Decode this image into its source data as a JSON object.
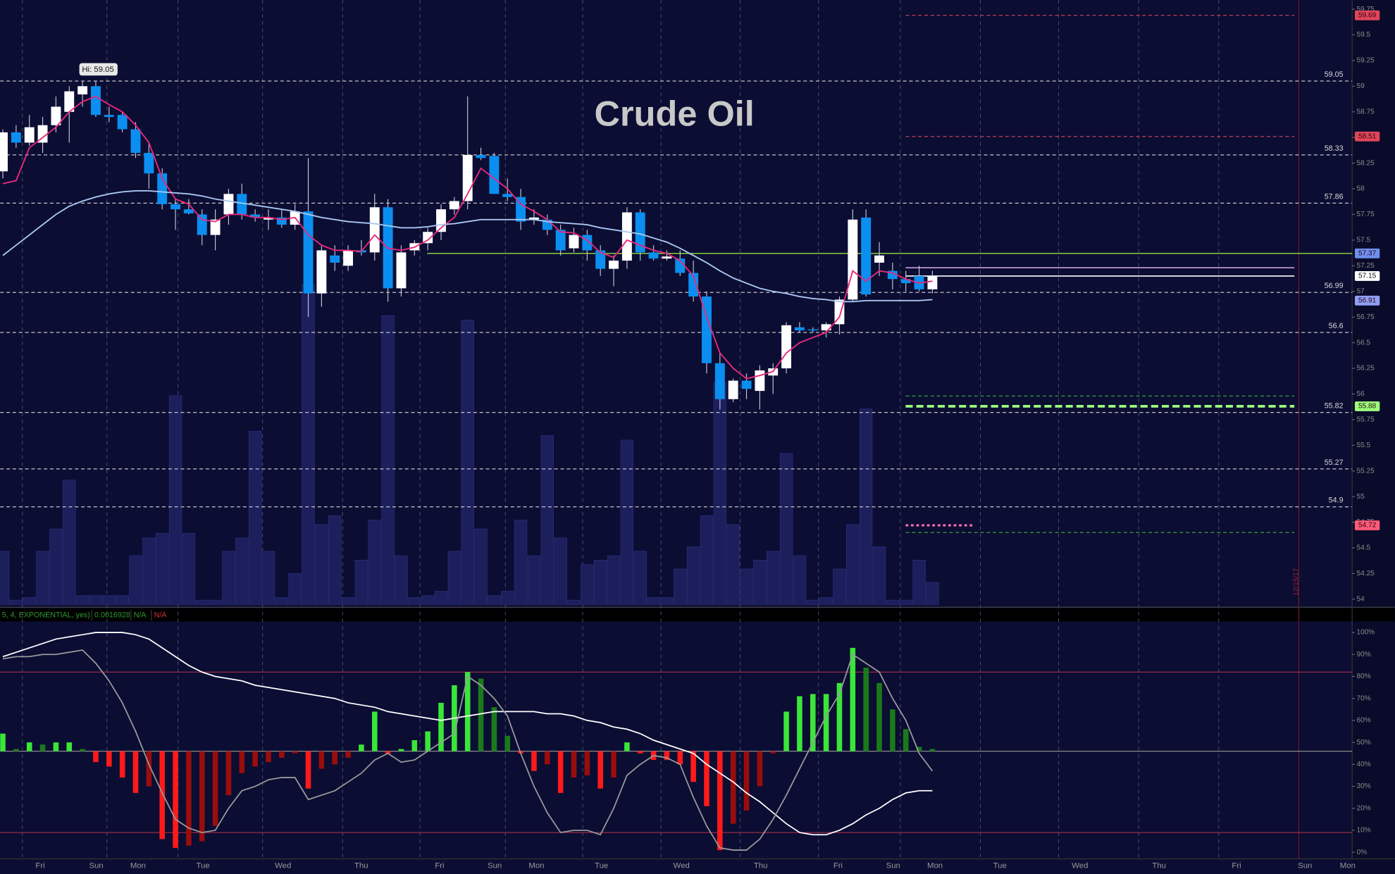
{
  "chart_data": [
    {
      "type": "candlestick",
      "title": "Crude Oil",
      "hi_label": "Hi: 59.05",
      "date_stamp": "12/15/17",
      "up_color": "#ffffff",
      "down_color": "#0a8ff0",
      "open": [
        58.17,
        58.55,
        58.45,
        58.45,
        58.62,
        58.75,
        58.92,
        59.0,
        58.72,
        58.72,
        58.58,
        58.35,
        58.15,
        57.85,
        57.8,
        57.75,
        57.55,
        57.75,
        57.95,
        57.75,
        57.7,
        57.72,
        57.65,
        57.78,
        56.98,
        57.35,
        57.25,
        57.4,
        57.38,
        57.82,
        57.03,
        57.4,
        57.47,
        57.58,
        57.8,
        57.88,
        58.33,
        58.32,
        57.95,
        57.92,
        57.7,
        57.7,
        57.6,
        57.42,
        57.55,
        57.4,
        57.22,
        57.3,
        57.77,
        57.38,
        57.32,
        57.32,
        57.18,
        56.95,
        56.3,
        55.95,
        56.13,
        56.03,
        56.18,
        56.25,
        56.65,
        56.63,
        56.62,
        56.68,
        56.92,
        57.72,
        57.28,
        57.2,
        57.12,
        57.15,
        57.02
      ],
      "high": [
        58.58,
        58.62,
        58.72,
        58.7,
        58.9,
        59.0,
        59.05,
        59.05,
        58.8,
        58.75,
        58.65,
        58.45,
        58.2,
        57.9,
        57.9,
        57.8,
        57.8,
        58.0,
        58.05,
        57.8,
        57.8,
        57.8,
        57.85,
        58.3,
        57.45,
        57.45,
        57.45,
        57.5,
        57.95,
        57.9,
        57.45,
        57.5,
        57.62,
        57.85,
        57.92,
        58.9,
        58.4,
        58.35,
        58.1,
        58.0,
        57.8,
        57.75,
        57.65,
        57.62,
        57.6,
        57.45,
        57.35,
        57.82,
        57.8,
        57.45,
        57.4,
        57.4,
        57.3,
        57.0,
        56.4,
        56.15,
        56.2,
        56.28,
        56.3,
        56.7,
        56.7,
        56.65,
        56.7,
        56.95,
        57.8,
        57.8,
        57.48,
        57.28,
        57.2,
        57.25,
        57.2
      ],
      "low": [
        58.1,
        58.4,
        58.42,
        58.35,
        58.55,
        58.45,
        58.8,
        58.7,
        58.65,
        58.55,
        58.3,
        58.0,
        57.8,
        57.6,
        57.75,
        57.45,
        57.4,
        57.65,
        57.7,
        57.68,
        57.6,
        57.62,
        57.6,
        56.75,
        56.85,
        57.2,
        57.2,
        57.35,
        57.3,
        56.9,
        56.95,
        57.35,
        57.4,
        57.5,
        57.75,
        57.8,
        58.28,
        57.95,
        57.88,
        57.6,
        57.65,
        57.55,
        57.35,
        57.38,
        57.3,
        57.15,
        57.05,
        57.22,
        57.3,
        57.3,
        57.3,
        57.15,
        56.9,
        56.2,
        55.85,
        55.92,
        55.95,
        55.85,
        56.0,
        56.2,
        56.6,
        56.6,
        56.55,
        56.58,
        56.9,
        56.95,
        57.15,
        57.02,
        57.0,
        57.0,
        56.98
      ],
      "close": [
        58.55,
        58.45,
        58.6,
        58.62,
        58.8,
        58.95,
        59.0,
        58.72,
        58.7,
        58.58,
        58.35,
        58.15,
        57.85,
        57.8,
        57.76,
        57.55,
        57.7,
        57.95,
        57.75,
        57.72,
        57.72,
        57.65,
        57.78,
        56.98,
        57.4,
        57.28,
        57.4,
        57.38,
        57.82,
        57.03,
        57.38,
        57.47,
        57.58,
        57.8,
        57.88,
        58.33,
        58.3,
        57.95,
        57.92,
        57.68,
        57.72,
        57.6,
        57.4,
        57.55,
        57.4,
        57.22,
        57.3,
        57.77,
        57.38,
        57.32,
        57.34,
        57.18,
        56.95,
        56.3,
        55.95,
        56.13,
        56.05,
        56.23,
        56.25,
        56.67,
        56.62,
        56.62,
        56.68,
        56.92,
        57.7,
        56.97,
        57.35,
        57.12,
        57.08,
        57.02,
        57.15
      ],
      "series": [
        {
          "color": "#e8287a",
          "values": [
            58.05,
            58.08,
            58.4,
            58.5,
            58.6,
            58.75,
            58.85,
            58.9,
            58.82,
            58.75,
            58.62,
            58.45,
            58.1,
            57.9,
            57.85,
            57.7,
            57.68,
            57.75,
            57.75,
            57.72,
            57.72,
            57.7,
            57.72,
            57.55,
            57.45,
            57.4,
            57.4,
            57.39,
            57.55,
            57.42,
            57.4,
            57.43,
            57.5,
            57.62,
            57.72,
            57.95,
            58.2,
            58.1,
            58.0,
            57.85,
            57.78,
            57.7,
            57.58,
            57.57,
            57.5,
            57.38,
            57.33,
            57.5,
            57.45,
            57.4,
            57.37,
            57.3,
            57.15,
            56.75,
            56.4,
            56.25,
            56.15,
            56.18,
            56.22,
            56.4,
            56.5,
            56.55,
            56.6,
            56.75,
            57.2,
            57.1,
            57.2,
            57.18,
            57.12,
            57.08,
            57.1
          ]
        },
        {
          "color": "#a9c6f0",
          "values": [
            57.35,
            57.45,
            57.55,
            57.65,
            57.75,
            57.83,
            57.88,
            57.92,
            57.95,
            57.97,
            57.98,
            57.98,
            57.97,
            57.96,
            57.95,
            57.93,
            57.9,
            57.88,
            57.86,
            57.84,
            57.82,
            57.8,
            57.78,
            57.75,
            57.72,
            57.7,
            57.68,
            57.67,
            57.66,
            57.64,
            57.62,
            57.62,
            57.63,
            57.65,
            57.66,
            57.68,
            57.7,
            57.7,
            57.7,
            57.7,
            57.7,
            57.68,
            57.67,
            57.66,
            57.65,
            57.62,
            57.6,
            57.58,
            57.56,
            57.52,
            57.48,
            57.42,
            57.35,
            57.28,
            57.2,
            57.13,
            57.08,
            57.03,
            57.0,
            56.98,
            56.95,
            56.93,
            56.92,
            56.9,
            56.9,
            56.91,
            56.91,
            56.91,
            56.91,
            56.91,
            56.92
          ]
        }
      ],
      "ylim": [
        53.93,
        59.84
      ],
      "yticks": [
        59.75,
        59.5,
        59.25,
        59,
        58.75,
        58.5,
        58.25,
        58,
        57.75,
        57.5,
        57.25,
        57,
        56.75,
        56.5,
        56.25,
        56,
        55.75,
        55.5,
        55.25,
        55,
        54.75,
        54.5,
        54.25,
        54
      ],
      "levels": [
        59.05,
        58.33,
        57.86,
        56.99,
        56.6,
        55.82,
        55.27,
        54.9
      ],
      "markers": [
        {
          "value": 59.69,
          "color": "#e0455a",
          "line": "dashed",
          "span": "projection",
          "tag": "#e0455a"
        },
        {
          "value": 58.51,
          "color": "#e0455a",
          "line": "dashed",
          "span": "projection",
          "tag": "#e0455a"
        },
        {
          "value": 57.37,
          "color": "#7fbf3f",
          "line": "solid",
          "span": "wide",
          "tag": "#6f8ff0"
        },
        {
          "value": 57.23,
          "color": "#c9a0dc",
          "line": "solid",
          "span": "projection"
        },
        {
          "value": 57.15,
          "color": "#ffffff",
          "line": "solid",
          "span": "projection",
          "tag": "#ffffff"
        },
        {
          "value": 56.91,
          "color": "#6f8ff0",
          "line": "none",
          "span": "projection",
          "tag": "#8f9ff5"
        },
        {
          "value": 55.98,
          "color": "#3fae3f",
          "line": "dashed",
          "span": "projection"
        },
        {
          "value": 55.88,
          "color": "#9cff7a",
          "line": "thick",
          "span": "projection",
          "tag": "#9cff7a"
        },
        {
          "value": 54.72,
          "color": "#ff6fae",
          "line": "dotted",
          "span": "short",
          "tag": "#ff5a78"
        },
        {
          "value": 54.65,
          "color": "#3fae3f",
          "line": "dashed",
          "span": "projection"
        }
      ]
    },
    {
      "type": "volume",
      "color": "#1c1f5c",
      "values": [
        60,
        5,
        8,
        60,
        85,
        140,
        10,
        10,
        10,
        10,
        55,
        75,
        80,
        235,
        80,
        5,
        5,
        60,
        75,
        195,
        60,
        8,
        35,
        360,
        90,
        100,
        8,
        50,
        95,
        325,
        55,
        8,
        10,
        15,
        60,
        320,
        85,
        10,
        15,
        95,
        55,
        190,
        75,
        5,
        45,
        50,
        55,
        185,
        60,
        8,
        8,
        40,
        65,
        100,
        250,
        90,
        40,
        50,
        60,
        170,
        55,
        5,
        8,
        40,
        90,
        220,
        65,
        5,
        5,
        50,
        25
      ]
    },
    {
      "type": "oscillator",
      "legend": [
        "5, 4, EXPONENTIAL, yes)",
        "0.0016928",
        "N/A",
        "N/A"
      ],
      "midline": 46,
      "bands": [
        82,
        9
      ],
      "colors": {
        "up_rising": "#39e639",
        "up_falling": "#1a7a1a",
        "down_falling": "#ff1a1a",
        "down_rising": "#990d0d"
      },
      "histogram": [
        54,
        47,
        50,
        49,
        50,
        50,
        47,
        41,
        39,
        34,
        27,
        30,
        6,
        2,
        3,
        5,
        12,
        26,
        36,
        39,
        41,
        43,
        45,
        29,
        38,
        40,
        43,
        49,
        64,
        45,
        47,
        51,
        55,
        68,
        76,
        82,
        79,
        66,
        53,
        45,
        37,
        40,
        27,
        34,
        35,
        29,
        34,
        50,
        45,
        42,
        42,
        40,
        32,
        21,
        1,
        13,
        19,
        30,
        45,
        64,
        71,
        72,
        72,
        77,
        93,
        84,
        77,
        65,
        56,
        48,
        47
      ],
      "series": [
        {
          "color": "#ffffff",
          "values": [
            89,
            91,
            93,
            95,
            97,
            98,
            99,
            100,
            100,
            100,
            99,
            97,
            93,
            89,
            85,
            82,
            80,
            79,
            78,
            76,
            75,
            74,
            73,
            72,
            71,
            70,
            68,
            67,
            66,
            64,
            63,
            62,
            61,
            60,
            61,
            62,
            63,
            64,
            64,
            64,
            64,
            63,
            63,
            62,
            60,
            59,
            57,
            56,
            54,
            51,
            49,
            47,
            45,
            40,
            36,
            32,
            27,
            23,
            18,
            13,
            9,
            8,
            8,
            10,
            13,
            17,
            20,
            24,
            27,
            28,
            28
          ]
        },
        {
          "color": "#9a9a9a",
          "values": [
            88,
            89,
            89,
            90,
            90,
            91,
            92,
            86,
            78,
            68,
            55,
            40,
            27,
            15,
            11,
            9,
            10,
            20,
            28,
            30,
            33,
            34,
            34,
            24,
            26,
            28,
            32,
            36,
            42,
            45,
            41,
            42,
            46,
            50,
            54,
            80,
            76,
            70,
            62,
            45,
            30,
            18,
            9,
            10,
            10,
            8,
            20,
            35,
            40,
            44,
            43,
            40,
            25,
            12,
            2,
            1,
            1,
            6,
            15,
            26,
            38,
            50,
            62,
            72,
            90,
            86,
            82,
            70,
            60,
            45,
            37
          ]
        }
      ],
      "ylim": [
        -3,
        105
      ],
      "yticks": [
        {
          "value": 100,
          "label": "100%"
        },
        {
          "value": 90,
          "label": "90%"
        },
        {
          "value": 80,
          "label": "80%"
        },
        {
          "value": 70,
          "label": "70%"
        },
        {
          "value": 60,
          "label": "60%"
        },
        {
          "value": 50,
          "label": "50%"
        },
        {
          "value": 40,
          "label": "40%"
        },
        {
          "value": 30,
          "label": "30%"
        },
        {
          "value": 20,
          "label": "20%"
        },
        {
          "value": 10,
          "label": "10%"
        },
        {
          "value": 0,
          "label": "0%"
        }
      ]
    }
  ],
  "time_axis": [
    "Fri",
    "Sun",
    "Mon",
    "Tue",
    "Wed",
    "Thu",
    "Fri",
    "Sun",
    "Mon",
    "Tue",
    "Wed",
    "Thu",
    "Fri",
    "Sun",
    "Mon",
    "Tue",
    "Wed",
    "Thu",
    "Fri",
    "Sun",
    "Mon"
  ]
}
